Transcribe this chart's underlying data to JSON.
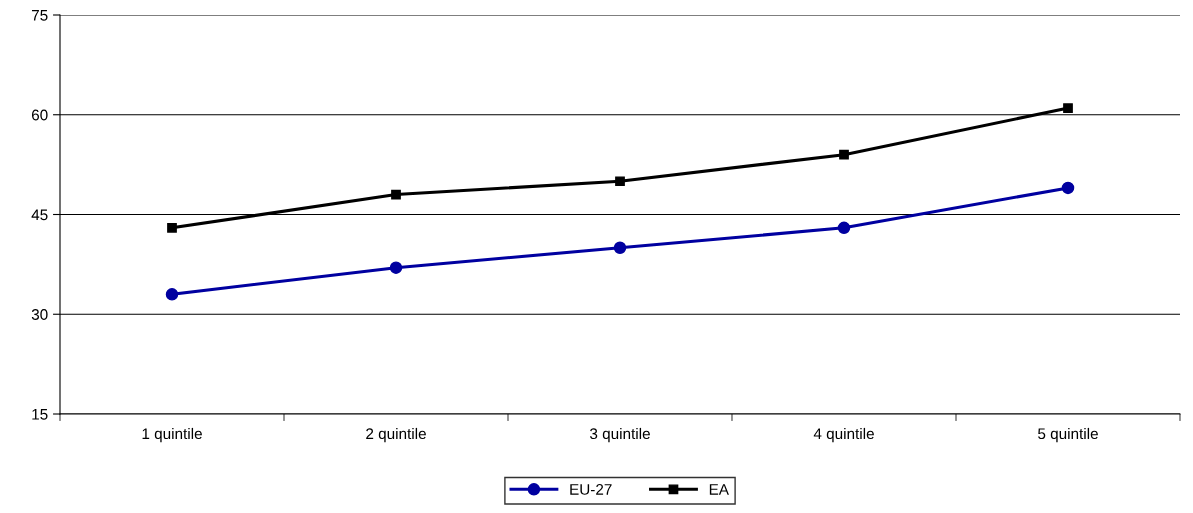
{
  "chart_data": {
    "type": "line",
    "categories": [
      "1 quintile",
      "2 quintile",
      "3 quintile",
      "4 quintile",
      "5 quintile"
    ],
    "series": [
      {
        "name": "EU-27",
        "color": "#0000a0",
        "marker": "circle",
        "values": [
          33,
          37,
          40,
          43,
          49
        ]
      },
      {
        "name": "EA",
        "color": "#000000",
        "marker": "square",
        "values": [
          43,
          48,
          50,
          54,
          61
        ]
      }
    ],
    "ylim": [
      15,
      75
    ],
    "yticks": [
      15,
      30,
      45,
      60,
      75
    ],
    "grid": "y",
    "legend": "bottom",
    "line_style": "solid"
  }
}
